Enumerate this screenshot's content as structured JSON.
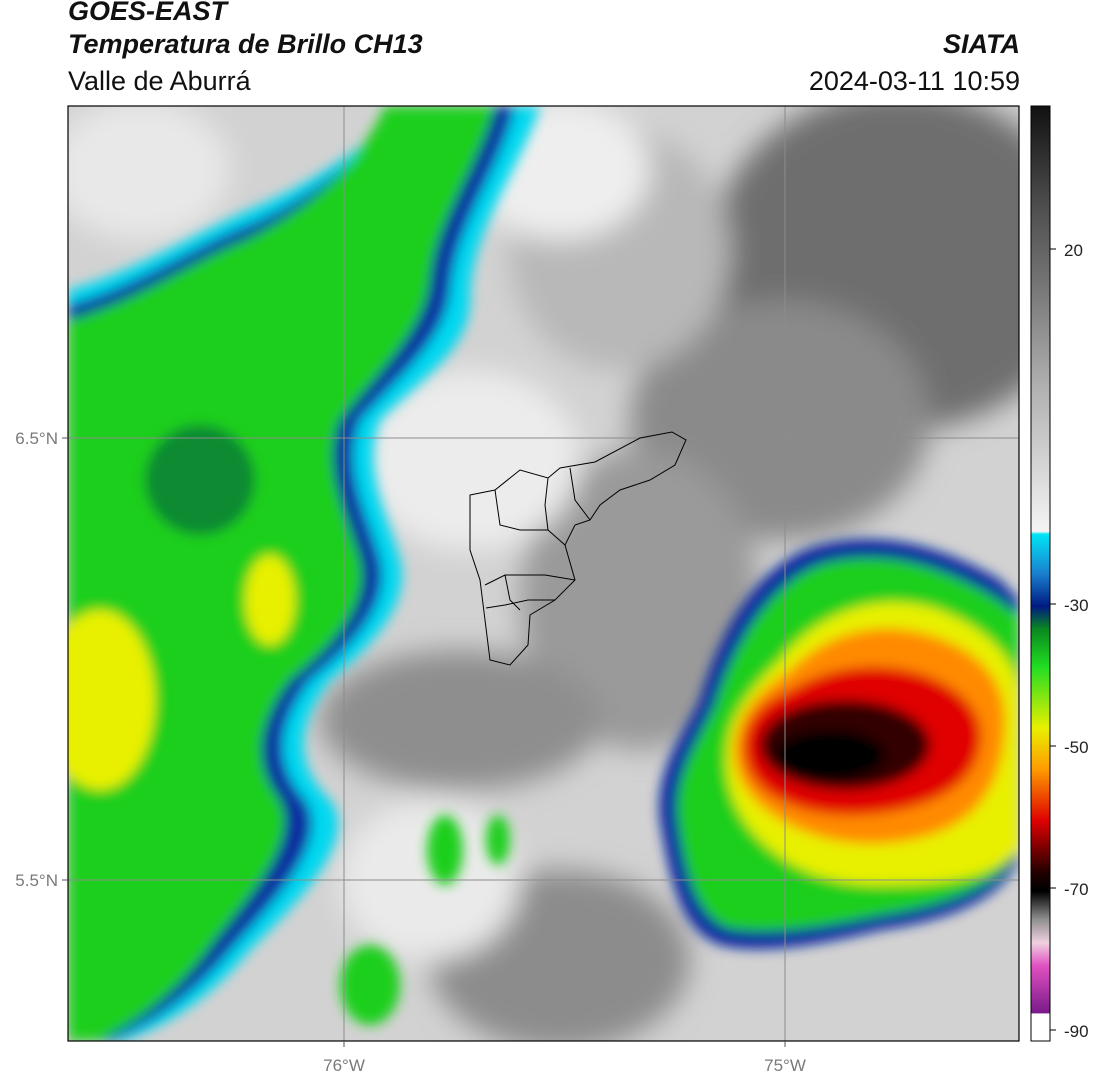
{
  "header": {
    "satellite": "GOES-EAST",
    "product": "Temperatura de Brillo CH13",
    "region": "Valle de Aburrá",
    "brand": "SIATA",
    "timestamp": "2024-03-11 10:59"
  },
  "map": {
    "lat_labels": [
      "6.5°N",
      "5.5°N"
    ],
    "lon_labels": [
      "76°W",
      "75°W"
    ],
    "grid": true,
    "boundary": "Valle de Aburrá municipalities outline"
  },
  "colorbar": {
    "ticks": [
      "20",
      "-30",
      "-50",
      "-70",
      "-90"
    ],
    "colors": {
      "warm_top": "#1a1a1a",
      "gray": "#8a8a8a",
      "white": "#f0f0f0",
      "cyan": "#00d8f0",
      "blue": "#0a2aa0",
      "green": "#1ccf1c",
      "yellow": "#f0f000",
      "orange": "#ff8a00",
      "red": "#e00000",
      "black": "#000000",
      "magenta": "#e040c0",
      "purple": "#7a1a8a"
    }
  }
}
